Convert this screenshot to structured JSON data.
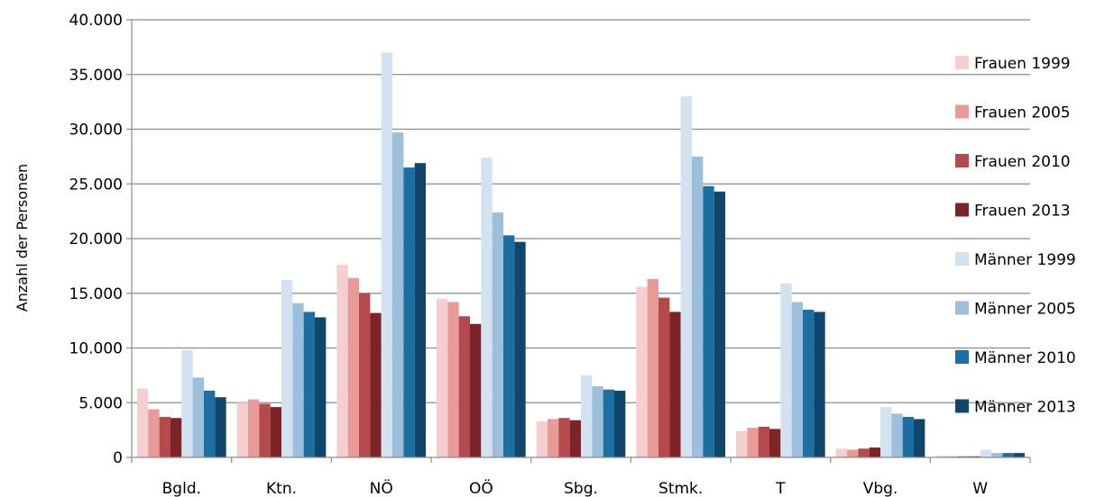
{
  "chart_data": {
    "type": "bar",
    "title": "",
    "xlabel": "",
    "ylabel": "Anzahl der Personen",
    "ylim": [
      0,
      40000
    ],
    "yticks": [
      0,
      5000,
      10000,
      15000,
      20000,
      25000,
      30000,
      35000,
      40000
    ],
    "ytick_labels": [
      "0",
      "5.000",
      "10.000",
      "15.000",
      "20.000",
      "25.000",
      "30.000",
      "35.000",
      "40.000"
    ],
    "grid": true,
    "legend_position": "right",
    "categories": [
      "Bgld.",
      "Ktn.",
      "NÖ",
      "OÖ",
      "Sbg.",
      "Stmk.",
      "T",
      "Vbg.",
      "W"
    ],
    "series": [
      {
        "name": "Frauen 1999",
        "color": "#f5cfcf",
        "values": [
          6300,
          5000,
          17600,
          14500,
          3300,
          15600,
          2400,
          800,
          150
        ]
      },
      {
        "name": "Frauen 2005",
        "color": "#e89a98",
        "values": [
          4400,
          5300,
          16400,
          14200,
          3500,
          16300,
          2700,
          700,
          100
        ]
      },
      {
        "name": "Frauen 2010",
        "color": "#b44a4c",
        "values": [
          3700,
          4900,
          15000,
          12900,
          3600,
          14600,
          2800,
          800,
          100
        ]
      },
      {
        "name": "Frauen 2013",
        "color": "#7d2428",
        "values": [
          3600,
          4600,
          13200,
          12200,
          3400,
          13300,
          2600,
          900,
          100
        ]
      },
      {
        "name": "Männer 1999",
        "color": "#d2e2f0",
        "values": [
          9800,
          16200,
          37000,
          27400,
          7500,
          33000,
          15900,
          4600,
          700
        ]
      },
      {
        "name": "Männer 2005",
        "color": "#9ebfdc",
        "values": [
          7300,
          14100,
          29700,
          22400,
          6500,
          27500,
          14200,
          4000,
          400
        ]
      },
      {
        "name": "Männer 2010",
        "color": "#1c6fa0",
        "values": [
          6100,
          13300,
          26500,
          20300,
          6200,
          24800,
          13500,
          3700,
          400
        ]
      },
      {
        "name": "Männer 2013",
        "color": "#10456c",
        "values": [
          5500,
          12800,
          26900,
          19700,
          6100,
          24300,
          13300,
          3500,
          400
        ]
      }
    ]
  }
}
